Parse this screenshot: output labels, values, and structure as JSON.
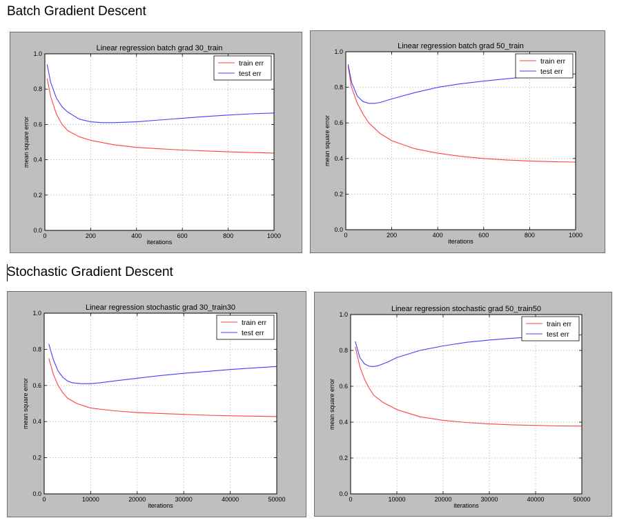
{
  "headings": {
    "batch": "Batch Gradient Descent",
    "stochastic": "Stochastic Gradient Descent"
  },
  "colors": {
    "train": "#ff4040",
    "test": "#4040ff",
    "frame_bg": "#bfbfbf",
    "grid": "#b0b0b0"
  },
  "chart_data": [
    {
      "type": "line",
      "title": "Linear regression batch grad 30_train",
      "xlabel": "iterations",
      "ylabel": "mean square error",
      "xlim": [
        0,
        1000
      ],
      "ylim": [
        0.0,
        1.0
      ],
      "xticks": [
        "0",
        "200",
        "400",
        "600",
        "800",
        "1000"
      ],
      "yticks": [
        "0.0",
        "0.2",
        "0.4",
        "0.6",
        "0.8",
        "1.0"
      ],
      "grid": true,
      "legend_position": "top-right",
      "series": [
        {
          "name": "train err",
          "color": "#ff4040",
          "x": [
            10,
            25,
            50,
            75,
            100,
            150,
            200,
            300,
            400,
            500,
            600,
            700,
            800,
            900,
            1000
          ],
          "y": [
            0.86,
            0.76,
            0.66,
            0.6,
            0.565,
            0.53,
            0.51,
            0.485,
            0.47,
            0.462,
            0.455,
            0.45,
            0.445,
            0.441,
            0.438
          ]
        },
        {
          "name": "test err",
          "color": "#4040ff",
          "x": [
            10,
            25,
            50,
            75,
            100,
            150,
            200,
            250,
            300,
            400,
            500,
            600,
            700,
            800,
            900,
            1000
          ],
          "y": [
            0.94,
            0.84,
            0.75,
            0.7,
            0.67,
            0.63,
            0.615,
            0.61,
            0.61,
            0.615,
            0.625,
            0.635,
            0.645,
            0.653,
            0.66,
            0.665
          ]
        }
      ]
    },
    {
      "type": "line",
      "title": "Linear regression batch grad 50_train",
      "xlabel": "iterations",
      "ylabel": "mean square error",
      "xlim": [
        0,
        1000
      ],
      "ylim": [
        0.0,
        1.0
      ],
      "xticks": [
        "0",
        "200",
        "400",
        "600",
        "800",
        "1000"
      ],
      "yticks": [
        "0.0",
        "0.2",
        "0.4",
        "0.6",
        "0.8",
        "1.0"
      ],
      "grid": true,
      "legend_position": "top-right",
      "series": [
        {
          "name": "train err",
          "color": "#ff4040",
          "x": [
            10,
            25,
            50,
            75,
            100,
            150,
            200,
            300,
            400,
            500,
            600,
            700,
            800,
            900,
            1000
          ],
          "y": [
            0.92,
            0.8,
            0.71,
            0.65,
            0.6,
            0.54,
            0.5,
            0.455,
            0.43,
            0.412,
            0.4,
            0.392,
            0.386,
            0.382,
            0.38
          ]
        },
        {
          "name": "test err",
          "color": "#4040ff",
          "x": [
            10,
            25,
            50,
            75,
            100,
            125,
            150,
            200,
            300,
            400,
            500,
            600,
            700,
            800,
            900,
            1000
          ],
          "y": [
            0.93,
            0.83,
            0.75,
            0.72,
            0.71,
            0.71,
            0.715,
            0.735,
            0.77,
            0.8,
            0.82,
            0.835,
            0.848,
            0.86,
            0.87,
            0.875
          ]
        }
      ]
    },
    {
      "type": "line",
      "title": "Linear regression stochastic grad 30_train30",
      "xlabel": "iterations",
      "ylabel": "mean square error",
      "xlim": [
        0,
        50000
      ],
      "ylim": [
        0.0,
        1.0
      ],
      "xticks": [
        "0",
        "10000",
        "20000",
        "30000",
        "40000",
        "50000"
      ],
      "yticks": [
        "0.0",
        "0.2",
        "0.4",
        "0.6",
        "0.8",
        "1.0"
      ],
      "grid": true,
      "legend_position": "top-right",
      "series": [
        {
          "name": "train err",
          "color": "#ff4040",
          "x": [
            1000,
            2000,
            3000,
            4000,
            5000,
            7000,
            10000,
            15000,
            20000,
            25000,
            30000,
            35000,
            40000,
            45000,
            50000
          ],
          "y": [
            0.75,
            0.66,
            0.6,
            0.56,
            0.53,
            0.5,
            0.475,
            0.46,
            0.45,
            0.445,
            0.44,
            0.435,
            0.432,
            0.43,
            0.428
          ]
        },
        {
          "name": "test err",
          "color": "#4040ff",
          "x": [
            1000,
            2000,
            3000,
            4000,
            5000,
            6000,
            8000,
            10000,
            12000,
            15000,
            20000,
            25000,
            30000,
            35000,
            40000,
            45000,
            50000
          ],
          "y": [
            0.83,
            0.74,
            0.68,
            0.645,
            0.625,
            0.615,
            0.61,
            0.61,
            0.615,
            0.625,
            0.64,
            0.655,
            0.667,
            0.678,
            0.688,
            0.697,
            0.705
          ]
        }
      ]
    },
    {
      "type": "line",
      "title": "Linear regression stochastic grad 50_train50",
      "xlabel": "iterations",
      "ylabel": "mean square error",
      "xlim": [
        0,
        50000
      ],
      "ylim": [
        0.0,
        1.0
      ],
      "xticks": [
        "0",
        "10000",
        "20000",
        "30000",
        "40000",
        "50000"
      ],
      "yticks": [
        "0.0",
        "0.2",
        "0.4",
        "0.6",
        "0.8",
        "1.0"
      ],
      "grid": true,
      "legend_position": "top-right",
      "series": [
        {
          "name": "train err",
          "color": "#ff4040",
          "x": [
            1000,
            2000,
            3000,
            4000,
            5000,
            7000,
            10000,
            15000,
            20000,
            25000,
            30000,
            35000,
            40000,
            45000,
            50000
          ],
          "y": [
            0.82,
            0.71,
            0.64,
            0.59,
            0.55,
            0.51,
            0.47,
            0.43,
            0.41,
            0.398,
            0.39,
            0.385,
            0.382,
            0.379,
            0.378
          ]
        },
        {
          "name": "test err",
          "color": "#4040ff",
          "x": [
            1000,
            2000,
            3000,
            4000,
            5000,
            6000,
            8000,
            10000,
            15000,
            20000,
            25000,
            30000,
            35000,
            40000,
            45000,
            50000
          ],
          "y": [
            0.85,
            0.76,
            0.725,
            0.712,
            0.71,
            0.715,
            0.735,
            0.76,
            0.8,
            0.825,
            0.845,
            0.858,
            0.868,
            0.876,
            0.882,
            0.887
          ]
        }
      ]
    }
  ]
}
